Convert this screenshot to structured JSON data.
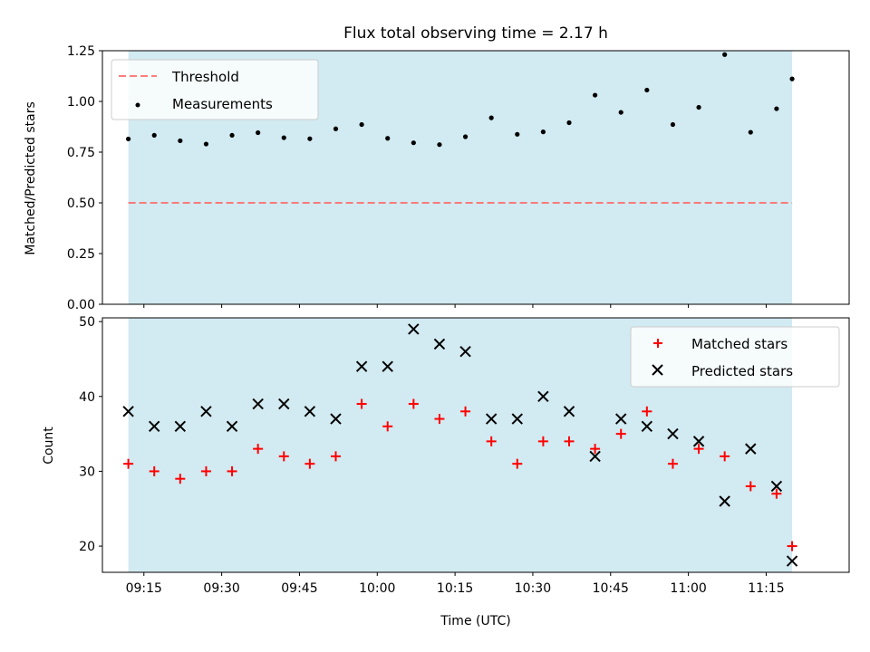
{
  "figure": {
    "title": "Flux total observing time = 2.17 h",
    "xlabel": "Time (UTC)"
  },
  "chart_data": [
    {
      "type": "scatter",
      "ylabel": "Matched/Predicted stars",
      "ylim": [
        0,
        1.25
      ],
      "yticks": [
        "0.00",
        "0.25",
        "0.50",
        "0.75",
        "1.00",
        "1.25"
      ],
      "xlim": [
        "09:07",
        "11:31"
      ],
      "shaded_span": [
        "09:12",
        "11:20"
      ],
      "shade_color": "#add8e6",
      "legend_location": "upper left",
      "threshold": {
        "label": "Threshold",
        "value": 0.5,
        "color": "#ff6666"
      },
      "series": [
        {
          "name": "Measurements",
          "color": "#000000",
          "x": [
            "09:12",
            "09:17",
            "09:22",
            "09:27",
            "09:32",
            "09:37",
            "09:42",
            "09:47",
            "09:52",
            "09:57",
            "10:02",
            "10:07",
            "10:12",
            "10:17",
            "10:22",
            "10:27",
            "10:32",
            "10:37",
            "10:42",
            "10:47",
            "10:52",
            "10:57",
            "11:02",
            "11:07",
            "11:12",
            "11:17",
            "11:20"
          ],
          "values": [
            0.815,
            0.833,
            0.806,
            0.79,
            0.833,
            0.846,
            0.821,
            0.816,
            0.865,
            0.886,
            0.818,
            0.796,
            0.787,
            0.826,
            0.919,
            0.838,
            0.85,
            0.895,
            1.031,
            0.946,
            1.056,
            0.886,
            0.971,
            1.231,
            0.848,
            0.964,
            1.111
          ]
        }
      ]
    },
    {
      "type": "scatter",
      "ylabel": "Count",
      "ylim": [
        16.5,
        50.5
      ],
      "yticks": [
        "20",
        "30",
        "40",
        "50"
      ],
      "xlim": [
        "09:07",
        "11:31"
      ],
      "xticks": [
        "09:15",
        "09:30",
        "09:45",
        "10:00",
        "10:15",
        "10:30",
        "10:45",
        "11:00",
        "11:15"
      ],
      "shaded_span": [
        "09:12",
        "11:20"
      ],
      "shade_color": "#add8e6",
      "legend_location": "upper right",
      "series": [
        {
          "name": "Matched stars",
          "marker": "plus",
          "color": "#ff0000",
          "x": [
            "09:12",
            "09:17",
            "09:22",
            "09:27",
            "09:32",
            "09:37",
            "09:42",
            "09:47",
            "09:52",
            "09:57",
            "10:02",
            "10:07",
            "10:12",
            "10:17",
            "10:22",
            "10:27",
            "10:32",
            "10:37",
            "10:42",
            "10:47",
            "10:52",
            "10:57",
            "11:02",
            "11:07",
            "11:12",
            "11:17",
            "11:20"
          ],
          "values": [
            31,
            30,
            29,
            30,
            30,
            33,
            32,
            31,
            32,
            39,
            36,
            39,
            37,
            38,
            34,
            31,
            34,
            34,
            33,
            35,
            38,
            31,
            33,
            32,
            28,
            27,
            20
          ]
        },
        {
          "name": "Predicted stars",
          "marker": "x",
          "color": "#000000",
          "x": [
            "09:12",
            "09:17",
            "09:22",
            "09:27",
            "09:32",
            "09:37",
            "09:42",
            "09:47",
            "09:52",
            "09:57",
            "10:02",
            "10:07",
            "10:12",
            "10:17",
            "10:22",
            "10:27",
            "10:32",
            "10:37",
            "10:42",
            "10:47",
            "10:52",
            "10:57",
            "11:02",
            "11:07",
            "11:12",
            "11:17",
            "11:20"
          ],
          "values": [
            38,
            36,
            36,
            38,
            36,
            39,
            39,
            38,
            37,
            44,
            44,
            49,
            47,
            46,
            37,
            37,
            40,
            38,
            32,
            37,
            36,
            35,
            34,
            26,
            33,
            28,
            18
          ]
        }
      ]
    }
  ]
}
